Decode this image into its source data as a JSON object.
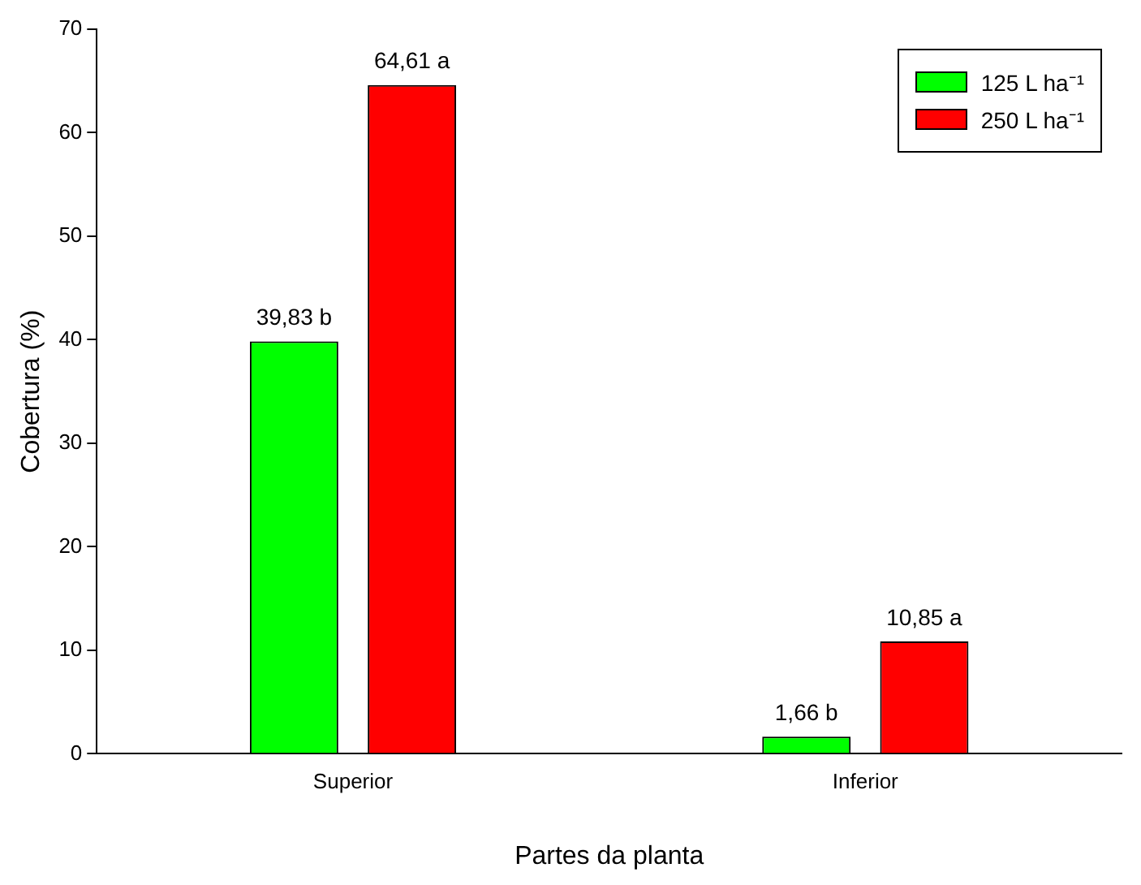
{
  "chart_data": {
    "type": "bar",
    "xlabel": "Partes da planta",
    "ylabel": "Cobertura (%)",
    "categories": [
      "Superior",
      "Inferior"
    ],
    "series": [
      {
        "name": "125 L ha⁻¹",
        "color": "#00ff00",
        "values": [
          39.83,
          1.66
        ],
        "value_labels": [
          "39,83 b",
          "1,66 b"
        ]
      },
      {
        "name": "250 L ha⁻¹",
        "color": "#ff0000",
        "values": [
          64.61,
          10.85
        ],
        "value_labels": [
          "64,61 a",
          "10,85 a"
        ]
      }
    ],
    "ylim": [
      0,
      70
    ],
    "yticks": [
      0,
      10,
      20,
      30,
      40,
      50,
      60,
      70
    ],
    "grid": false,
    "legend": "top right"
  }
}
